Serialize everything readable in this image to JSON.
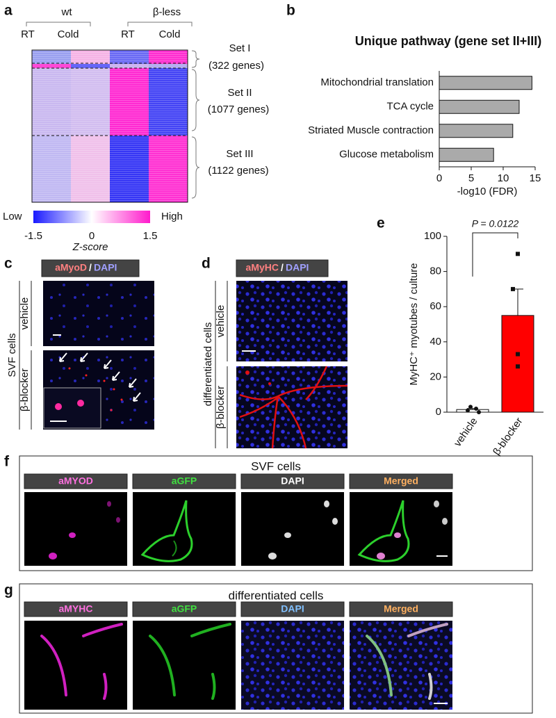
{
  "panels": {
    "a": {
      "label": "a",
      "groups": [
        "wt",
        "β-less"
      ],
      "conditions": [
        "RT",
        "Cold",
        "RT",
        "Cold"
      ],
      "sets": [
        {
          "name": "Set I",
          "genes": "(322 genes)"
        },
        {
          "name": "Set II",
          "genes": "(1077 genes)"
        },
        {
          "name": "Set III",
          "genes": "(1122 genes)"
        }
      ],
      "colorbar": {
        "low": "Low",
        "high": "High",
        "ticks": [
          -1.5,
          0,
          1.5
        ],
        "title": "Z-score"
      }
    },
    "c": {
      "label": "c",
      "stain": "aMyoD",
      "separator": "/",
      "counterstain": "DAPI",
      "rows": [
        "vehicle",
        "β-blocker"
      ],
      "cell_type": "SVF cells"
    },
    "d": {
      "label": "d",
      "stain": "aMyHC",
      "separator": "/",
      "counterstain": "DAPI",
      "rows": [
        "vehicle",
        "β-blocker"
      ],
      "cell_type": "differentiated cells"
    },
    "f": {
      "label": "f",
      "title": "SVF cells",
      "channels": [
        "aMYOD",
        "aGFP",
        "DAPI",
        "Merged"
      ]
    },
    "g": {
      "label": "g",
      "title": "differentiated cells",
      "channels": [
        "aMYHC",
        "aGFP",
        "DAPI",
        "Merged"
      ]
    }
  },
  "chart_data": [
    {
      "type": "hbar",
      "label": "b",
      "title": "Unique pathway (gene set II+III)",
      "categories": [
        "Mitochondrial translation",
        "TCA cycle",
        "Striated Muscle contraction",
        "Glucose metabolism"
      ],
      "values": [
        14.5,
        12.5,
        11.5,
        8.5
      ],
      "color": "#aaaaaa",
      "xlim": [
        0,
        15
      ],
      "xticks": [
        0,
        5,
        10,
        15
      ],
      "xlabel": "-log10 (FDR)"
    },
    {
      "type": "bar",
      "label": "e",
      "categories": [
        "vehicle",
        "β-blocker"
      ],
      "values": [
        1.5,
        55
      ],
      "errors": [
        0.6,
        15
      ],
      "points": [
        [
          3,
          2,
          1,
          0
        ],
        [
          90,
          70,
          33,
          26
        ]
      ],
      "colors": [
        "#ffffff",
        "#ff0000"
      ],
      "ylim": [
        0,
        100
      ],
      "yticks": [
        0,
        20,
        40,
        60,
        80,
        100
      ],
      "ylabel": "MyHC⁺ myotubes / culture",
      "annotation": "P = 0.0122"
    }
  ]
}
